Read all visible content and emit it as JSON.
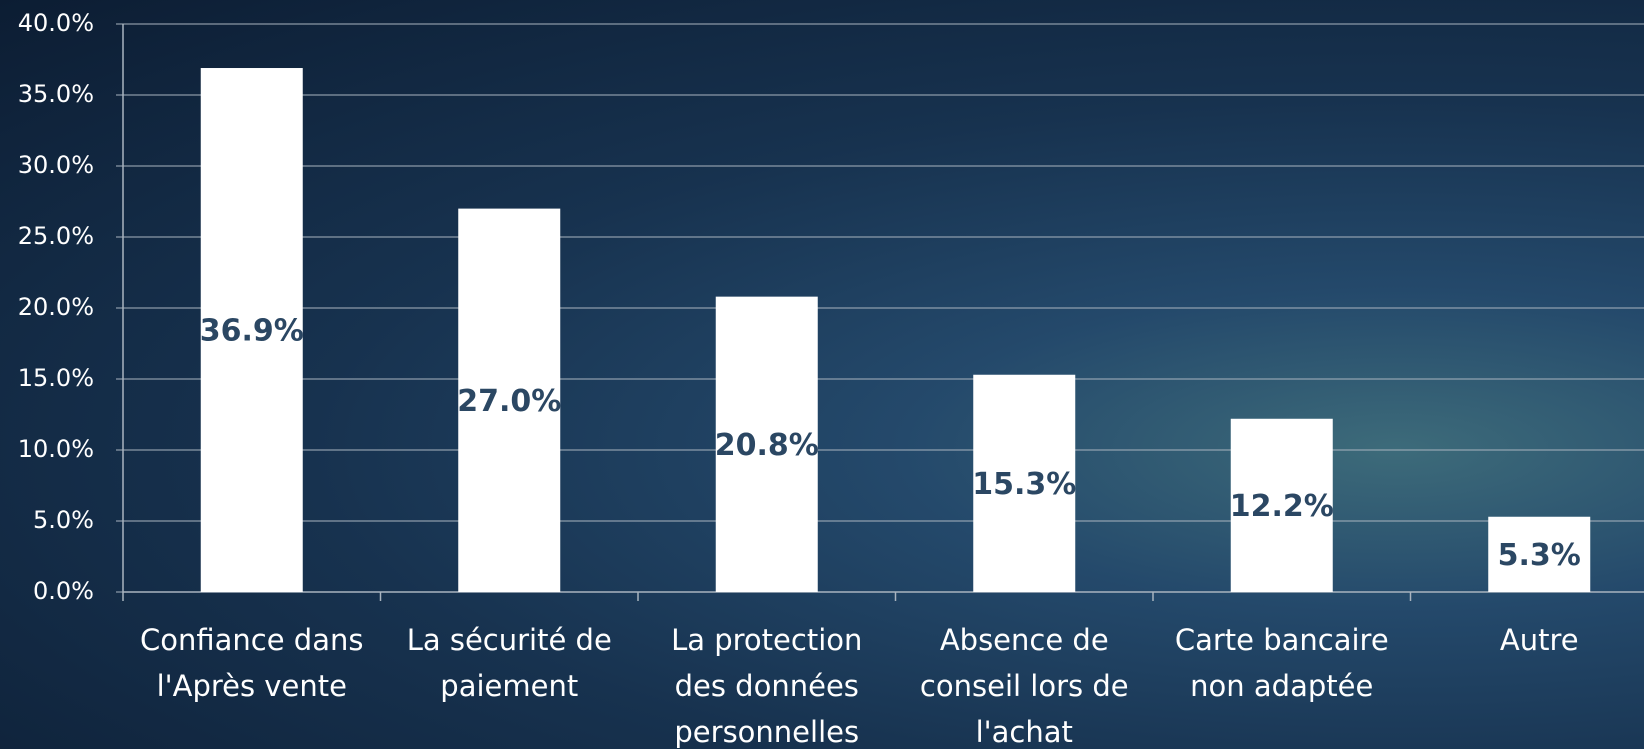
{
  "chart_data": {
    "type": "bar",
    "categories": [
      "Confiance dans l'Après vente",
      "La sécurité de paiement",
      "La protection des données personnelles",
      "Absence de conseil lors de l'achat",
      "Carte bancaire non adaptée",
      "Autre"
    ],
    "values": [
      36.9,
      27.0,
      20.8,
      15.3,
      12.2,
      5.3
    ],
    "value_labels": [
      "36.9%",
      "27.0%",
      "20.8%",
      "15.3%",
      "12.2%",
      "5.3%"
    ],
    "color": "#ffffff",
    "ylim": [
      0,
      40
    ],
    "yticks": [
      {
        "value": 0,
        "label": "0.0%"
      },
      {
        "value": 5,
        "label": "5.0%"
      },
      {
        "value": 10,
        "label": "10.0%"
      },
      {
        "value": 15,
        "label": "15.0%"
      },
      {
        "value": 20,
        "label": "20.0%"
      },
      {
        "value": 25,
        "label": "25.0%"
      },
      {
        "value": 30,
        "label": "30.0%"
      },
      {
        "value": 35,
        "label": "35.0%"
      },
      {
        "value": 40,
        "label": "40.0%"
      }
    ],
    "grid": true
  }
}
